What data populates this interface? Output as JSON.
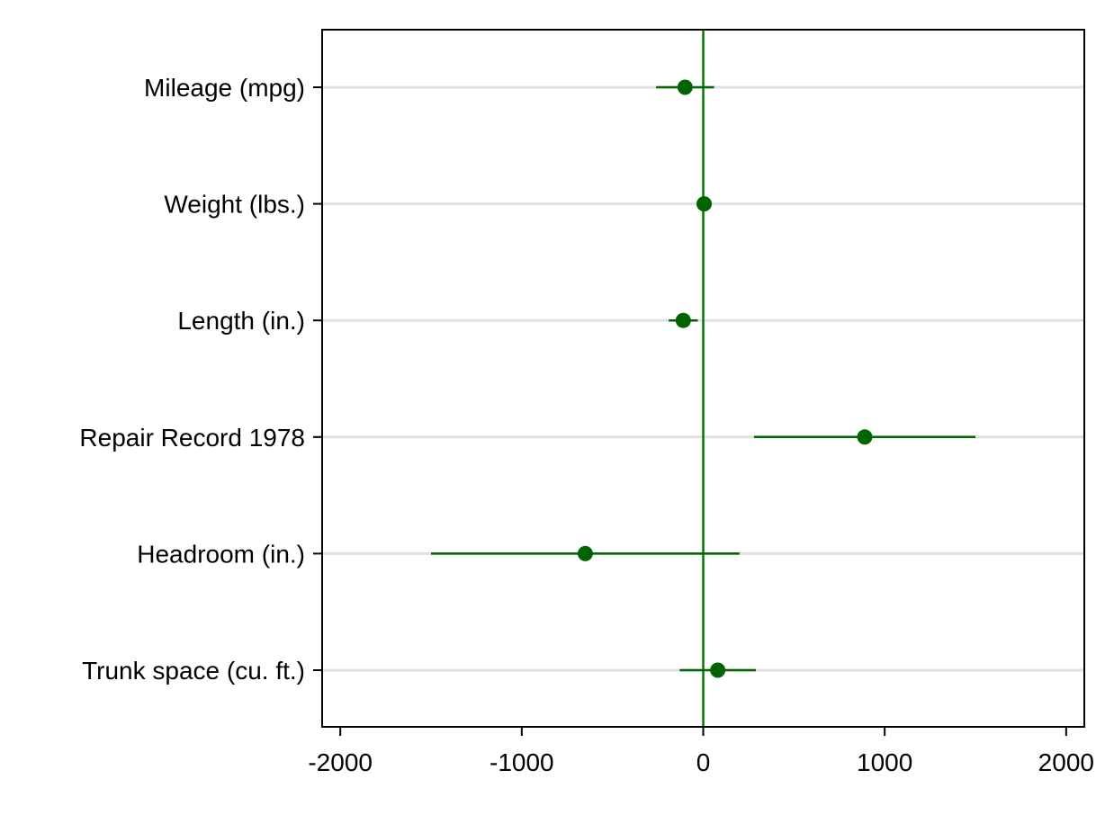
{
  "chart_data": {
    "type": "scatter",
    "subtype": "coefficient-plot",
    "title": "",
    "xlabel": "",
    "ylabel": "",
    "xlim": [
      -2100,
      2100
    ],
    "x_ticks": [
      -2000,
      -1000,
      0,
      1000,
      2000
    ],
    "x_tick_labels": [
      "-2000",
      "-1000",
      "0",
      "1000",
      "2000"
    ],
    "reference_line_x": 0,
    "grid": "horizontal",
    "legend": "none",
    "series": [
      {
        "points": [
          {
            "label": "Mileage (mpg)",
            "estimate": -100,
            "ci_low": -260,
            "ci_high": 60
          },
          {
            "label": "Weight (lbs.)",
            "estimate": 5,
            "ci_low": 3,
            "ci_high": 7
          },
          {
            "label": "Length (in.)",
            "estimate": -110,
            "ci_low": -190,
            "ci_high": -30
          },
          {
            "label": "Repair Record 1978",
            "estimate": 890,
            "ci_low": 280,
            "ci_high": 1500
          },
          {
            "label": "Headroom (in.)",
            "estimate": -650,
            "ci_low": -1500,
            "ci_high": 200
          },
          {
            "label": "Trunk space (cu. ft.)",
            "estimate": 80,
            "ci_low": -130,
            "ci_high": 290
          }
        ]
      }
    ],
    "colors": {
      "marker": "#006400",
      "ci_line": "#006400",
      "reference_line": "#007a00",
      "grid": "#e0e0e0",
      "axis": "#000000"
    }
  }
}
